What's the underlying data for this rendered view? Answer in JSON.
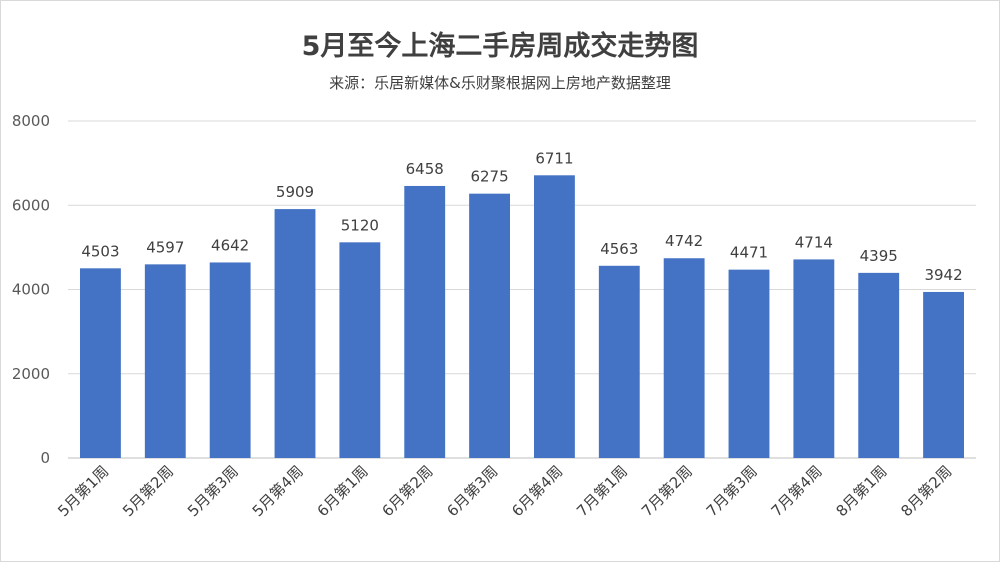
{
  "chart_data": {
    "type": "bar",
    "title": "5月至今上海二手房周成交走势图",
    "subtitle": "来源：乐居新媒体&乐财聚根据网上房地产数据整理",
    "categories": [
      "5月第1周",
      "5月第2周",
      "5月第3周",
      "5月第4周",
      "6月第1周",
      "6月第2周",
      "6月第3周",
      "6月第4周",
      "7月第1周",
      "7月第2周",
      "7月第3周",
      "7月第4周",
      "8月第1周",
      "8月第2周"
    ],
    "values": [
      4503,
      4597,
      4642,
      5909,
      5120,
      6458,
      6275,
      6711,
      4563,
      4742,
      4471,
      4714,
      4395,
      3942
    ],
    "ylim": [
      0,
      8000
    ],
    "yticks": [
      0,
      2000,
      4000,
      6000,
      8000
    ],
    "grid": true,
    "bar_color": "#4472c4"
  }
}
